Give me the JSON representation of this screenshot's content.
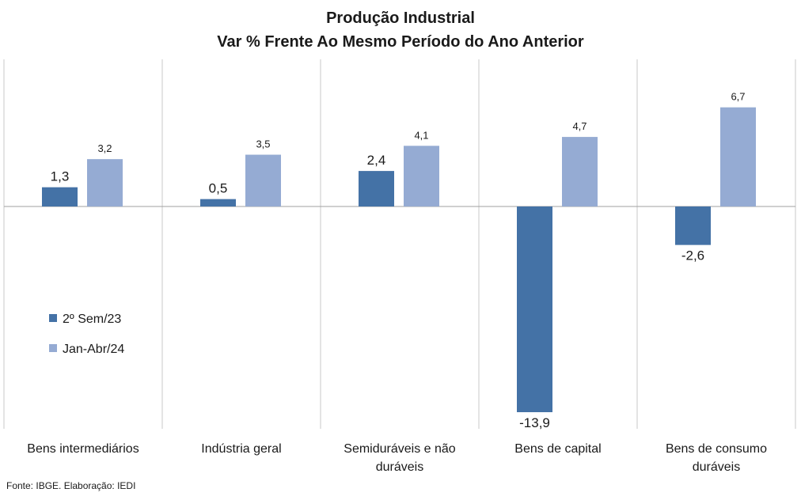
{
  "chart_data": {
    "type": "bar",
    "title": "Produção Industrial",
    "subtitle": "Var % Frente Ao Mesmo Período do Ano Anterior",
    "categories": [
      [
        "Bens intermediários"
      ],
      [
        "Indústria geral"
      ],
      [
        "Semiduráveis e não",
        "duráveis"
      ],
      [
        "Bens de capital"
      ],
      [
        "Bens de consumo",
        "duráveis"
      ]
    ],
    "series": [
      {
        "name": "2º Sem/23",
        "values": [
          1.3,
          0.5,
          2.4,
          -13.9,
          -2.6
        ],
        "labels": [
          "1,3",
          "0,5",
          "2,4",
          "-13,9",
          "-2,6"
        ],
        "color": "#4472a6"
      },
      {
        "name": "Jan-Abr/24",
        "values": [
          3.2,
          3.5,
          4.1,
          4.7,
          6.7
        ],
        "labels": [
          "3,2",
          "3,5",
          "4,1",
          "4,7",
          "6,7"
        ],
        "color": "#95abd3"
      }
    ],
    "legend_position": "left-middle",
    "grid": "vertical category separators",
    "xlabel": "",
    "ylabel": ""
  },
  "source": "Fonte: IBGE. Elaboração: IEDI"
}
